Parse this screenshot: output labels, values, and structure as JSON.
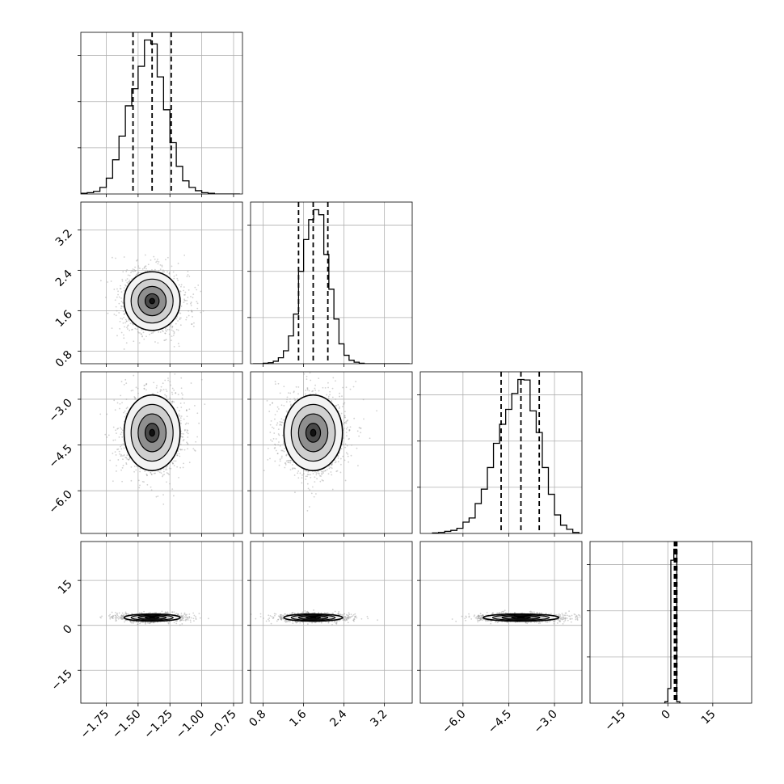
{
  "chart_data": {
    "type": "corner",
    "params": [
      {
        "xlim": [
          -1.95,
          -0.68
        ],
        "xticks": [
          -1.75,
          -1.5,
          -1.25,
          -1.0,
          -0.75
        ],
        "xtick_labels": [
          "−1.75",
          "−1.50",
          "−1.25",
          "−1.00",
          "−0.75"
        ],
        "quantiles": [
          -1.54,
          -1.39,
          -1.24
        ],
        "mean": -1.39,
        "sd": 0.11
      },
      {
        "xlim": [
          0.55,
          3.75
        ],
        "xticks": [
          0.8,
          1.6,
          2.4,
          3.2
        ],
        "xtick_labels": [
          "0.8",
          "1.6",
          "2.4",
          "3.2"
        ],
        "yticks": [
          0.8,
          1.6,
          2.4,
          3.2
        ],
        "ytick_labels": [
          "0.8",
          "1.6",
          "2.4",
          "3.2"
        ],
        "quantiles": [
          1.5,
          1.79,
          2.08
        ],
        "mean": 1.79,
        "sd": 0.29
      },
      {
        "xlim": [
          -7.4,
          -2.1
        ],
        "xticks": [
          -6.0,
          -4.5,
          -3.0
        ],
        "xtick_labels": [
          "−6.0",
          "−4.5",
          "−3.0"
        ],
        "yticks": [
          -6.0,
          -4.5,
          -3.0
        ],
        "ytick_labels": [
          "−6.0",
          "−4.5",
          "−3.0"
        ],
        "quantiles": [
          -4.75,
          -4.1,
          -3.5
        ],
        "mean": -4.1,
        "sd": 0.62
      },
      {
        "xlim": [
          -26,
          28
        ],
        "xticks": [
          -15,
          0,
          15
        ],
        "xtick_labels": [
          "−15",
          "0",
          "15"
        ],
        "yticks": [
          -15,
          0,
          15
        ],
        "ytick_labels": [
          "−15",
          "0",
          "15"
        ],
        "quantiles": [
          2.2,
          2.6,
          3.0
        ],
        "mean": 2.6,
        "sd": 0.6,
        "ylim": [
          -26,
          28
        ]
      }
    ],
    "histograms": [
      {
        "param": 0,
        "bins": [
          -1.95,
          -1.9,
          -1.85,
          -1.8,
          -1.75,
          -1.7,
          -1.65,
          -1.6,
          -1.55,
          -1.5,
          -1.45,
          -1.4,
          -1.35,
          -1.3,
          -1.25,
          -1.2,
          -1.15,
          -1.1,
          -1.05,
          -1.0,
          -0.95,
          -0.9,
          -0.85,
          -0.8,
          -0.75,
          -0.7
        ],
        "counts": [
          0.01,
          0.02,
          0.04,
          0.1,
          0.24,
          0.52,
          0.88,
          1.34,
          1.6,
          1.94,
          2.34,
          2.28,
          1.78,
          1.28,
          0.78,
          0.42,
          0.2,
          0.1,
          0.05,
          0.02,
          0.01,
          0.0,
          0.0,
          0.0,
          0.0
        ]
      },
      {
        "param": 1,
        "bins": [
          0.6,
          0.7,
          0.8,
          0.9,
          1.0,
          1.1,
          1.2,
          1.3,
          1.4,
          1.5,
          1.6,
          1.7,
          1.8,
          1.9,
          2.0,
          2.1,
          2.2,
          2.3,
          2.4,
          2.5,
          2.6,
          2.7,
          2.8,
          2.9,
          3.0,
          3.1,
          3.2,
          3.3,
          3.4,
          3.5,
          3.6,
          3.7
        ],
        "counts": [
          0.0,
          0.0,
          0.01,
          0.02,
          0.05,
          0.12,
          0.26,
          0.56,
          1.0,
          1.86,
          2.5,
          2.9,
          3.1,
          3.0,
          2.2,
          1.5,
          0.9,
          0.4,
          0.17,
          0.07,
          0.03,
          0.01,
          0.0,
          0.0,
          0.0,
          0.0,
          0.0,
          0.0,
          0.0,
          0.0,
          0.0
        ]
      },
      {
        "param": 2,
        "bins": [
          -7.0,
          -6.8,
          -6.6,
          -6.4,
          -6.2,
          -6.0,
          -5.8,
          -5.6,
          -5.4,
          -5.2,
          -5.0,
          -4.8,
          -4.6,
          -4.4,
          -4.2,
          -4.0,
          -3.8,
          -3.6,
          -3.4,
          -3.2,
          -3.0,
          -2.8,
          -2.6,
          -2.4,
          -2.2
        ],
        "counts": [
          0.01,
          0.02,
          0.04,
          0.06,
          0.1,
          0.22,
          0.3,
          0.58,
          0.86,
          1.28,
          1.75,
          2.12,
          2.41,
          2.72,
          2.99,
          2.98,
          2.38,
          1.96,
          1.28,
          0.76,
          0.36,
          0.16,
          0.08,
          0.02
        ]
      },
      {
        "param": 3,
        "bins": [
          -1.0,
          0.0,
          1.0,
          2.0,
          3.0,
          4.0
        ],
        "counts": [
          0.02,
          0.2,
          1.95,
          2.1,
          0.02
        ]
      }
    ]
  }
}
